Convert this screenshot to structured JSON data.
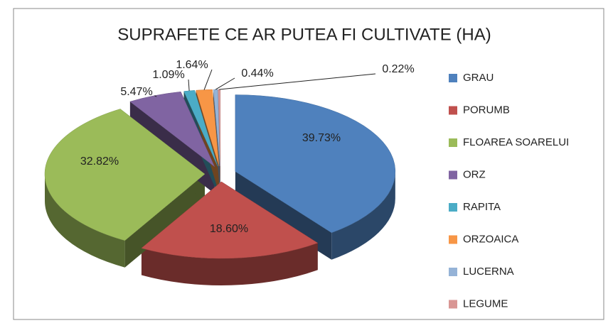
{
  "chart_data": {
    "type": "pie",
    "title": "SUPRAFETE CE AR PUTEA FI CULTIVATE (HA)",
    "categories": [
      "GRAU",
      "PORUMB",
      "FLOAREA SOARELUI",
      "ORZ",
      "RAPITA",
      "ORZOAICA",
      "LUCERNA",
      "LEGUME"
    ],
    "values": [
      39.73,
      18.6,
      32.82,
      5.47,
      1.09,
      1.64,
      0.44,
      0.22
    ],
    "value_labels": [
      "39.73%",
      "18.60%",
      "32.82%",
      "5.47%",
      "1.09%",
      "1.64%",
      "0.44%",
      "0.22%"
    ],
    "colors": [
      "#4f81bd",
      "#c0504d",
      "#9bbb59",
      "#8064a2",
      "#4bacc6",
      "#f79646",
      "#95b3d7",
      "#d99694"
    ],
    "legend": "right"
  }
}
